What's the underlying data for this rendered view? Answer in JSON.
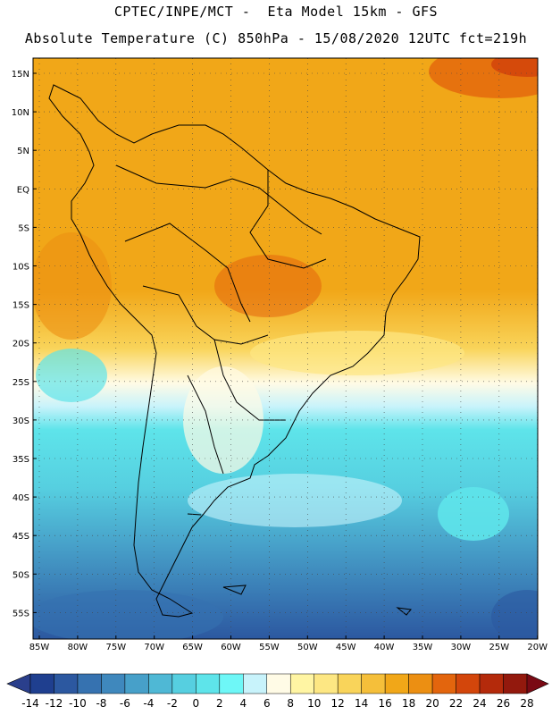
{
  "header": {
    "line1": "CPTEC/INPE/MCT -  Eta Model 15km - GFS",
    "line2": "Absolute Temperature (C) 850hPa - 15/08/2020 12UTC fct=219h"
  },
  "map": {
    "lat_labels": [
      "15N",
      "10N",
      "5N",
      "EQ",
      "5S",
      "10S",
      "15S",
      "20S",
      "25S",
      "30S",
      "35S",
      "40S",
      "45S",
      "50S",
      "55S"
    ],
    "lon_labels": [
      "85W",
      "80W",
      "75W",
      "70W",
      "65W",
      "60W",
      "55W",
      "50W",
      "45W",
      "40W",
      "35W",
      "30W",
      "25W",
      "20W"
    ],
    "lat_range": [
      -58,
      16
    ],
    "lon_range": [
      -86,
      -20
    ]
  },
  "colorbar": {
    "labels": [
      "-14",
      "-12",
      "-10",
      "-8",
      "-6",
      "-4",
      "-2",
      "0",
      "2",
      "4",
      "6",
      "8",
      "10",
      "12",
      "14",
      "16",
      "18",
      "20",
      "22",
      "24",
      "26",
      "28"
    ],
    "under_color": "#2a3f8c",
    "over_color": "#7a0a14",
    "colors": [
      "#1f3f8f",
      "#2c58a0",
      "#3672b0",
      "#3f88bd",
      "#47a0c9",
      "#4fb8d5",
      "#56cfe0",
      "#5ee4ea",
      "#6ef7f7",
      "#c8f3fb",
      "#fffbe6",
      "#fff5a3",
      "#fde783",
      "#f9d45a",
      "#f5bf3a",
      "#f1a718",
      "#ec8f12",
      "#e3650d",
      "#d3460b",
      "#b42a0b",
      "#93190d",
      "#7a0a14"
    ]
  }
}
